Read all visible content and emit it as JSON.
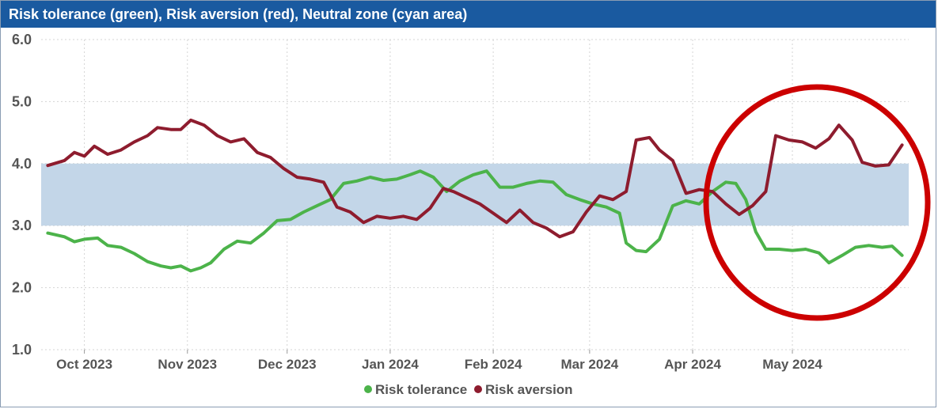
{
  "chart_data": {
    "type": "line",
    "title": "Risk tolerance (green), Risk aversion (red), Neutral zone (cyan area)",
    "xlabel": "",
    "ylabel": "",
    "ylim": [
      1.0,
      6.0
    ],
    "y_ticks": [
      "1.0",
      "2.0",
      "3.0",
      "4.0",
      "5.0",
      "6.0"
    ],
    "x_ticks": [
      "Oct 2023",
      "Nov 2023",
      "Dec 2023",
      "Jan 2024",
      "Feb 2024",
      "Mar 2024",
      "Apr 2024",
      "May 2024"
    ],
    "x_tick_dates": [
      "2023-10-01",
      "2023-11-01",
      "2023-12-01",
      "2024-01-01",
      "2024-02-01",
      "2024-03-01",
      "2024-04-01",
      "2024-05-01"
    ],
    "neutral_zone": [
      3.0,
      4.0
    ],
    "grid": true,
    "legend_position": "bottom-center",
    "annotation": "red circle around late April – May 2024 period",
    "colors": {
      "risk_tolerance": "#4cb34a",
      "risk_aversion": "#8e1c2e",
      "neutral_zone": "#c3d6e8",
      "circle": "#cc0000",
      "title_bar": "#1a5aa0"
    },
    "series": [
      {
        "name": "Risk tolerance",
        "color": "#4cb34a",
        "points": [
          [
            "2023-09-20",
            2.88
          ],
          [
            "2023-09-25",
            2.82
          ],
          [
            "2023-09-28",
            2.74
          ],
          [
            "2023-10-01",
            2.78
          ],
          [
            "2023-10-05",
            2.8
          ],
          [
            "2023-10-08",
            2.68
          ],
          [
            "2023-10-12",
            2.65
          ],
          [
            "2023-10-16",
            2.55
          ],
          [
            "2023-10-20",
            2.42
          ],
          [
            "2023-10-24",
            2.35
          ],
          [
            "2023-10-27",
            2.32
          ],
          [
            "2023-10-30",
            2.35
          ],
          [
            "2023-11-02",
            2.27
          ],
          [
            "2023-11-05",
            2.32
          ],
          [
            "2023-11-08",
            2.4
          ],
          [
            "2023-11-12",
            2.62
          ],
          [
            "2023-11-16",
            2.75
          ],
          [
            "2023-11-20",
            2.72
          ],
          [
            "2023-11-24",
            2.88
          ],
          [
            "2023-11-28",
            3.08
          ],
          [
            "2023-12-02",
            3.1
          ],
          [
            "2023-12-06",
            3.22
          ],
          [
            "2023-12-10",
            3.32
          ],
          [
            "2023-12-14",
            3.42
          ],
          [
            "2023-12-18",
            3.68
          ],
          [
            "2023-12-22",
            3.72
          ],
          [
            "2023-12-26",
            3.78
          ],
          [
            "2023-12-30",
            3.73
          ],
          [
            "2024-01-03",
            3.75
          ],
          [
            "2024-01-07",
            3.82
          ],
          [
            "2024-01-10",
            3.88
          ],
          [
            "2024-01-14",
            3.78
          ],
          [
            "2024-01-18",
            3.55
          ],
          [
            "2024-01-22",
            3.72
          ],
          [
            "2024-01-26",
            3.82
          ],
          [
            "2024-01-30",
            3.88
          ],
          [
            "2024-02-03",
            3.62
          ],
          [
            "2024-02-07",
            3.62
          ],
          [
            "2024-02-11",
            3.68
          ],
          [
            "2024-02-15",
            3.72
          ],
          [
            "2024-02-19",
            3.7
          ],
          [
            "2024-02-23",
            3.5
          ],
          [
            "2024-02-27",
            3.42
          ],
          [
            "2024-03-02",
            3.35
          ],
          [
            "2024-03-06",
            3.3
          ],
          [
            "2024-03-10",
            3.2
          ],
          [
            "2024-03-12",
            2.72
          ],
          [
            "2024-03-15",
            2.6
          ],
          [
            "2024-03-18",
            2.58
          ],
          [
            "2024-03-22",
            2.78
          ],
          [
            "2024-03-26",
            3.32
          ],
          [
            "2024-03-30",
            3.4
          ],
          [
            "2024-04-03",
            3.35
          ],
          [
            "2024-04-07",
            3.55
          ],
          [
            "2024-04-11",
            3.7
          ],
          [
            "2024-04-14",
            3.68
          ],
          [
            "2024-04-17",
            3.42
          ],
          [
            "2024-04-20",
            2.9
          ],
          [
            "2024-04-23",
            2.62
          ],
          [
            "2024-04-27",
            2.62
          ],
          [
            "2024-05-01",
            2.6
          ],
          [
            "2024-05-05",
            2.62
          ],
          [
            "2024-05-09",
            2.56
          ],
          [
            "2024-05-12",
            2.4
          ],
          [
            "2024-05-16",
            2.52
          ],
          [
            "2024-05-20",
            2.65
          ],
          [
            "2024-05-24",
            2.68
          ],
          [
            "2024-05-28",
            2.65
          ],
          [
            "2024-05-31",
            2.67
          ],
          [
            "2024-06-03",
            2.52
          ]
        ]
      },
      {
        "name": "Risk aversion",
        "color": "#8e1c2e",
        "points": [
          [
            "2023-09-20",
            3.97
          ],
          [
            "2023-09-25",
            4.05
          ],
          [
            "2023-09-28",
            4.18
          ],
          [
            "2023-10-01",
            4.12
          ],
          [
            "2023-10-04",
            4.28
          ],
          [
            "2023-10-08",
            4.15
          ],
          [
            "2023-10-12",
            4.22
          ],
          [
            "2023-10-16",
            4.35
          ],
          [
            "2023-10-20",
            4.45
          ],
          [
            "2023-10-23",
            4.58
          ],
          [
            "2023-10-27",
            4.55
          ],
          [
            "2023-10-30",
            4.55
          ],
          [
            "2023-11-02",
            4.7
          ],
          [
            "2023-11-06",
            4.62
          ],
          [
            "2023-11-10",
            4.45
          ],
          [
            "2023-11-14",
            4.35
          ],
          [
            "2023-11-18",
            4.4
          ],
          [
            "2023-11-22",
            4.18
          ],
          [
            "2023-11-26",
            4.1
          ],
          [
            "2023-11-30",
            3.92
          ],
          [
            "2023-12-04",
            3.78
          ],
          [
            "2023-12-08",
            3.75
          ],
          [
            "2023-12-12",
            3.7
          ],
          [
            "2023-12-16",
            3.3
          ],
          [
            "2023-12-20",
            3.22
          ],
          [
            "2023-12-24",
            3.05
          ],
          [
            "2023-12-28",
            3.15
          ],
          [
            "2024-01-01",
            3.12
          ],
          [
            "2024-01-05",
            3.15
          ],
          [
            "2024-01-09",
            3.1
          ],
          [
            "2024-01-13",
            3.28
          ],
          [
            "2024-01-17",
            3.6
          ],
          [
            "2024-01-20",
            3.55
          ],
          [
            "2024-01-24",
            3.45
          ],
          [
            "2024-01-28",
            3.35
          ],
          [
            "2024-02-01",
            3.2
          ],
          [
            "2024-02-05",
            3.05
          ],
          [
            "2024-02-09",
            3.25
          ],
          [
            "2024-02-13",
            3.05
          ],
          [
            "2024-02-17",
            2.96
          ],
          [
            "2024-02-21",
            2.82
          ],
          [
            "2024-02-25",
            2.9
          ],
          [
            "2024-02-29",
            3.22
          ],
          [
            "2024-03-04",
            3.48
          ],
          [
            "2024-03-08",
            3.42
          ],
          [
            "2024-03-12",
            3.55
          ],
          [
            "2024-03-15",
            4.38
          ],
          [
            "2024-03-19",
            4.42
          ],
          [
            "2024-03-22",
            4.22
          ],
          [
            "2024-03-26",
            4.05
          ],
          [
            "2024-03-30",
            3.52
          ],
          [
            "2024-04-03",
            3.58
          ],
          [
            "2024-04-07",
            3.55
          ],
          [
            "2024-04-11",
            3.35
          ],
          [
            "2024-04-15",
            3.18
          ],
          [
            "2024-04-19",
            3.32
          ],
          [
            "2024-04-23",
            3.55
          ],
          [
            "2024-04-26",
            4.45
          ],
          [
            "2024-04-30",
            4.38
          ],
          [
            "2024-05-04",
            4.35
          ],
          [
            "2024-05-08",
            4.25
          ],
          [
            "2024-05-12",
            4.4
          ],
          [
            "2024-05-15",
            4.62
          ],
          [
            "2024-05-19",
            4.38
          ],
          [
            "2024-05-22",
            4.02
          ],
          [
            "2024-05-26",
            3.96
          ],
          [
            "2024-05-30",
            3.98
          ],
          [
            "2024-06-03",
            4.3
          ]
        ]
      }
    ]
  }
}
